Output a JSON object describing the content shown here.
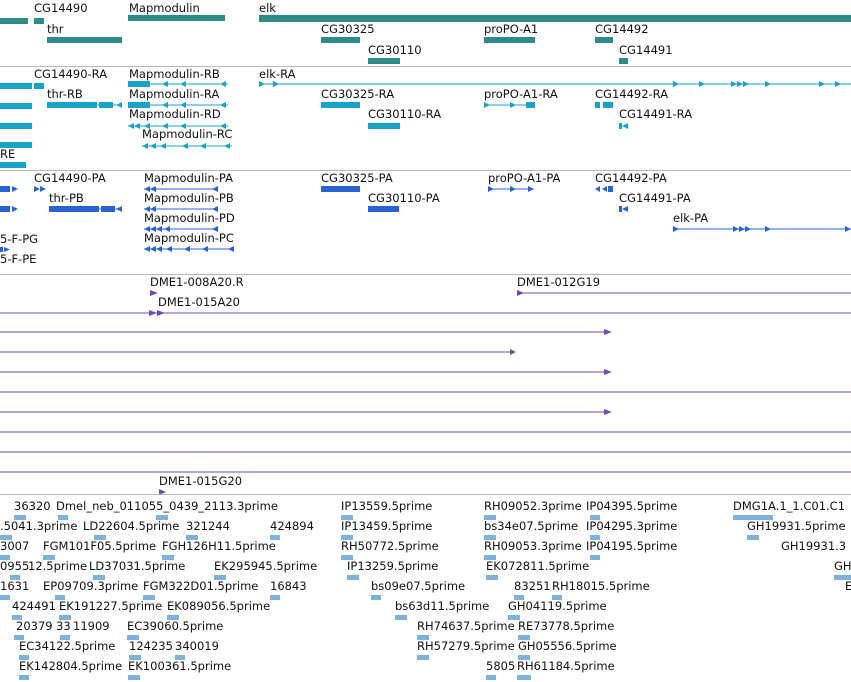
{
  "colors": {
    "gene": "#2e8b87",
    "transcript": "#1aa3c8",
    "protein": "#2a63d0",
    "clone": "#6a4fb0",
    "est": "#7fb2d8"
  },
  "tracks": {
    "genes": {
      "labels": [
        "CG14490",
        "Mapmodulin",
        "elk",
        "thr",
        "CG30325",
        "proPO-A1",
        "CG14492",
        "CG30110",
        "CG14491"
      ]
    },
    "transcripts": {
      "labels": [
        "CG14490-RA",
        "Mapmodulin-RB",
        "elk-RA",
        "thr-RB",
        "Mapmodulin-RA",
        "CG30325-RA",
        "proPO-A1-RA",
        "CG14492-RA",
        "Mapmodulin-RD",
        "CG30110-RA",
        "CG14491-RA",
        "Mapmodulin-RC",
        "RE"
      ]
    },
    "proteins": {
      "labels": [
        "CG14490-PA",
        "Mapmodulin-PA",
        "CG30325-PA",
        "proPO-A1-PA",
        "CG14492-PA",
        "thr-PB",
        "Mapmodulin-PB",
        "CG30110-PA",
        "CG14491-PA",
        "Mapmodulin-PD",
        "elk-PA",
        "5-F-PG",
        "Mapmodulin-PC",
        "5-F-PE"
      ]
    },
    "clones": {
      "labels": [
        "DME1-008A20.R",
        "DME1-012G19",
        "DME1-015A20",
        "DME1-015G20"
      ]
    },
    "ests": {
      "labels": [
        "36320",
        "Dmel_neb_011055_0439_2113.3prime",
        "IP13559.5prime",
        "RH09052.3prime",
        "IP04395.5prime",
        "DMG1A.1_1.C01.C1",
        ".5041.3prime",
        "LD22604.5prime",
        "321244",
        "424894",
        "IP13459.5prime",
        "bs34e07.5prime",
        "IP04295.3prime",
        "GH19931.5prime",
        "3007",
        "FGM101F05.5prime",
        "FGH126H11.5prime",
        "RH50772.5prime",
        "RH09053.3prime",
        "IP04195.5prime",
        "GH19931.3",
        "0955",
        "12.5prime",
        "LD37031.5prime",
        "EK295945.5prime",
        "IP13259.5prime",
        "EK072811.5prime",
        "GH",
        "1631",
        "EP09709.3prime",
        "FGM322D01.5prime",
        "16843",
        "bs09e07.5prime",
        "83251",
        "RH18015.5prime",
        "E",
        "424491",
        "EK191227.5prime",
        "EK089056.5prime",
        "bs63d11.5prime",
        "GH04119.5prime",
        "20379",
        "33",
        "11909",
        "EC39060.5prime",
        "RH74637.5prime",
        "RE73778.5prime",
        "EC34122.5prime",
        "124235",
        "340019",
        "RH57279.5prime",
        "GH05556.5prime",
        "EK142804.5prime",
        "EK100361.5prime",
        "5805",
        "RH61184.5prime"
      ]
    }
  }
}
